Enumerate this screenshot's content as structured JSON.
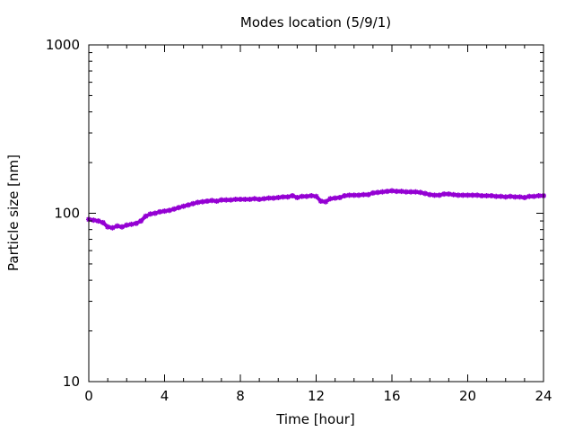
{
  "chart_data": {
    "type": "line",
    "title": "Modes location (5/9/1)",
    "xlabel": "Time [hour]",
    "ylabel": "Particle size [nm]",
    "xlim": [
      0,
      24
    ],
    "ylim": [
      10,
      1000
    ],
    "y_scale": "log",
    "grid": false,
    "legend": "none",
    "x_ticks": [
      0,
      4,
      8,
      12,
      16,
      20,
      24
    ],
    "x_tick_labels": [
      "0",
      "4",
      "8",
      "12",
      "16",
      "20",
      "24"
    ],
    "y_ticks": [
      10,
      100,
      1000
    ],
    "y_tick_labels": [
      "10",
      "100",
      "1000"
    ],
    "series": [
      {
        "color": "#9400d3",
        "marker": "star",
        "x": [
          0,
          0.25,
          0.5,
          0.75,
          1.0,
          1.25,
          1.5,
          1.75,
          2.0,
          2.25,
          2.5,
          2.75,
          3.0,
          3.25,
          3.5,
          3.75,
          4.0,
          4.25,
          4.5,
          4.75,
          5.0,
          5.25,
          5.5,
          5.75,
          6.0,
          6.25,
          6.5,
          6.75,
          7.0,
          7.25,
          7.5,
          7.75,
          8.0,
          8.25,
          8.5,
          8.75,
          9.0,
          9.25,
          9.5,
          9.75,
          10.0,
          10.25,
          10.5,
          10.75,
          11.0,
          11.25,
          11.5,
          11.75,
          12.0,
          12.25,
          12.5,
          12.75,
          13.0,
          13.25,
          13.5,
          13.75,
          14.0,
          14.25,
          14.5,
          14.75,
          15.0,
          15.25,
          15.5,
          15.75,
          16.0,
          16.25,
          16.5,
          16.75,
          17.0,
          17.25,
          17.5,
          17.75,
          18.0,
          18.25,
          18.5,
          18.75,
          19.0,
          19.25,
          19.5,
          19.75,
          20.0,
          20.25,
          20.5,
          20.75,
          21.0,
          21.25,
          21.5,
          21.75,
          22.0,
          22.25,
          22.5,
          22.75,
          23.0,
          23.25,
          23.5,
          23.75,
          24.0
        ],
        "y": [
          92,
          91,
          90,
          88,
          83,
          82,
          84,
          83,
          85,
          86,
          87,
          90,
          96,
          99,
          100,
          102,
          103,
          104,
          106,
          108,
          110,
          112,
          114,
          116,
          117,
          118,
          119,
          118,
          120,
          120,
          120,
          121,
          121,
          121,
          121,
          122,
          121,
          122,
          123,
          123,
          124,
          125,
          125,
          127,
          124,
          126,
          126,
          127,
          126,
          118,
          117,
          122,
          123,
          124,
          127,
          128,
          128,
          128,
          129,
          129,
          132,
          133,
          134,
          135,
          136,
          135,
          135,
          134,
          134,
          134,
          133,
          131,
          129,
          128,
          128,
          130,
          130,
          129,
          128,
          128,
          128,
          128,
          128,
          127,
          127,
          127,
          126,
          126,
          125,
          126,
          125,
          125,
          124,
          126,
          126,
          127,
          127
        ]
      }
    ]
  }
}
